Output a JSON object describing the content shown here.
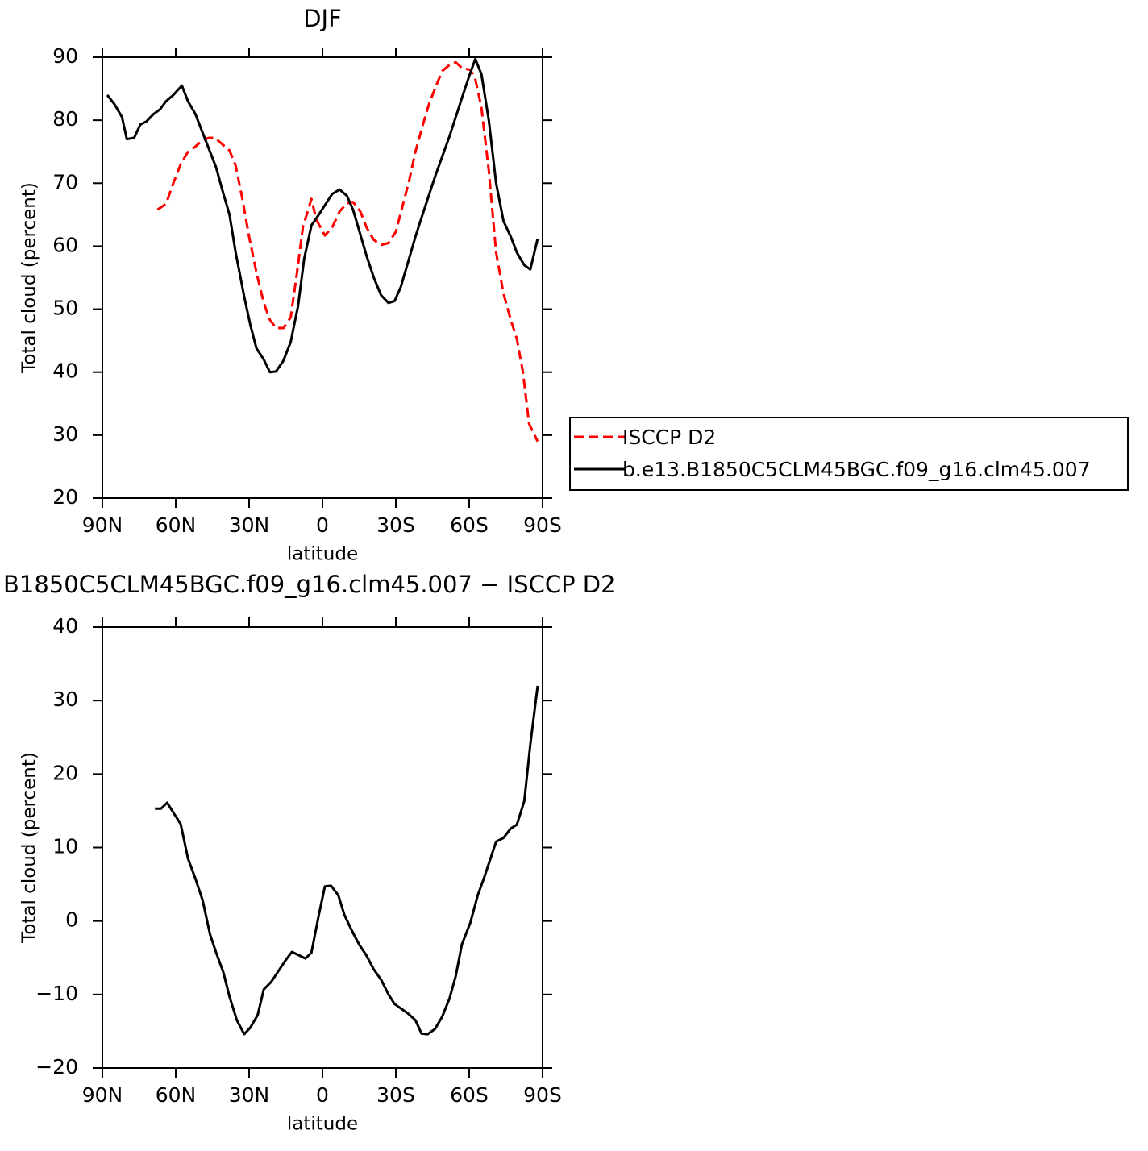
{
  "chart_data": [
    {
      "type": "line",
      "title": "DJF",
      "xlabel": "latitude",
      "ylabel": "Total cloud (percent)",
      "xlim": [
        90,
        -90
      ],
      "xticks": [
        {
          "value": 90,
          "label": "90N"
        },
        {
          "value": 60,
          "label": "60N"
        },
        {
          "value": 30,
          "label": "30N"
        },
        0,
        {
          "value": -30,
          "label": "30S"
        },
        {
          "value": -60,
          "label": "60S"
        },
        {
          "value": -90,
          "label": "90S"
        }
      ],
      "ylim": [
        20,
        90
      ],
      "yticks": [
        20,
        30,
        40,
        50,
        60,
        70,
        80,
        90
      ],
      "legend": "outside-right",
      "series": [
        {
          "name": "ISCCP D2",
          "color": "#ff0000",
          "dashed": true,
          "x": [
            67.5,
            64,
            61,
            58,
            55,
            52,
            49.5,
            46.5,
            44,
            41,
            38,
            35.5,
            33,
            30,
            27,
            24,
            21.5,
            19,
            16,
            13,
            10.5,
            8,
            4.5,
            2.5,
            -1,
            -4,
            -7,
            -10,
            -12.5,
            -15.5,
            -18,
            -21,
            -24,
            -27,
            -30,
            -32.5,
            -35.5,
            -38,
            -41,
            -43.5,
            -46.5,
            -49,
            -52,
            -54.5,
            -57,
            -60.5,
            -62.5,
            -65,
            -68,
            -71,
            -74,
            -77,
            -79.5,
            -82,
            -84.5,
            -88
          ],
          "values": [
            65.8,
            66.7,
            70,
            73,
            75,
            75.8,
            76.7,
            77.2,
            77.2,
            76.2,
            75.2,
            72.8,
            68,
            61.5,
            55.8,
            51,
            48.3,
            47,
            47,
            48.7,
            55.5,
            63,
            67.5,
            64.2,
            61.7,
            63,
            65.5,
            66.8,
            67,
            65.5,
            63,
            61,
            60.2,
            60.5,
            62.3,
            66,
            70.5,
            75,
            79.2,
            82.5,
            85.5,
            87.8,
            88.8,
            89.2,
            88.3,
            88,
            86.5,
            82,
            72,
            59,
            52.5,
            48.3,
            45.3,
            40,
            31.8,
            29
          ]
        },
        {
          "name": "b.e13.B1850C5CLM45BGC.f09_g16.clm45.007",
          "color": "#000000",
          "dashed": false,
          "x": [
            88,
            85,
            82,
            80,
            77,
            74.5,
            72,
            69,
            66.5,
            64,
            61,
            57.5,
            55,
            52,
            49,
            46,
            43.5,
            41,
            38,
            35.5,
            32,
            29.5,
            27,
            24,
            21.5,
            19,
            16,
            13,
            10,
            7.5,
            4.5,
            1.5,
            -1,
            -4,
            -7,
            -10,
            -12.5,
            -15,
            -18,
            -21,
            -24,
            -27,
            -29.5,
            -32,
            -35,
            -38,
            -40.5,
            -46,
            -52,
            -57,
            -60,
            -62.5,
            -65,
            -68,
            -71,
            -74,
            -77,
            -79.5,
            -82.5,
            -85,
            -88
          ],
          "values": [
            84,
            82.5,
            80.5,
            77,
            77.2,
            79.3,
            79.8,
            81,
            81.7,
            83,
            84,
            85.5,
            83,
            81,
            78,
            75,
            72.5,
            69,
            65,
            59,
            52,
            47.5,
            43.8,
            42,
            40,
            40.1,
            41.8,
            44.8,
            50.5,
            58,
            63.3,
            65,
            66.5,
            68.3,
            69,
            68,
            65.8,
            62.5,
            58.5,
            55,
            52.2,
            51,
            51.3,
            53.5,
            57.5,
            61.5,
            64.5,
            71,
            77.5,
            83.5,
            87,
            89.7,
            87.3,
            80,
            70,
            64,
            61.5,
            59,
            57,
            56.3,
            61.2
          ]
        }
      ]
    },
    {
      "type": "line",
      "title": "B1850C5CLM45BGC.f09_g16.clm45.007 − ISCCP D2",
      "xlabel": "latitude",
      "ylabel": "Total cloud (percent)",
      "xlim": [
        90,
        -90
      ],
      "xticks": [
        {
          "value": 90,
          "label": "90N"
        },
        {
          "value": 60,
          "label": "60N"
        },
        {
          "value": 30,
          "label": "30N"
        },
        0,
        {
          "value": -30,
          "label": "30S"
        },
        {
          "value": -60,
          "label": "60S"
        },
        {
          "value": -90,
          "label": "90S"
        }
      ],
      "ylim": [
        -20,
        40
      ],
      "yticks": [
        {
          "value": -20,
          "label": "−20"
        },
        {
          "value": -10,
          "label": "−10"
        },
        0,
        10,
        20,
        30,
        40
      ],
      "series": [
        {
          "color": "#000000",
          "dashed": false,
          "x": [
            68.5,
            66,
            63.5,
            60.5,
            58,
            55,
            52,
            49,
            46,
            43.5,
            40.5,
            38,
            35,
            32,
            29.5,
            26.5,
            24,
            21,
            18,
            15,
            12.5,
            10,
            7,
            4.5,
            1.5,
            -1,
            -3.5,
            -6.5,
            -9,
            -12,
            -15,
            -18,
            -21,
            -24,
            -27,
            -29.5,
            -32.5,
            -35,
            -38,
            -40.5,
            -43,
            -46,
            -49,
            -52,
            -54.5,
            -57,
            -60.5,
            -63.5,
            -66,
            -68.5,
            -71,
            -74,
            -77,
            -79.5,
            -82.5,
            -85,
            -88
          ],
          "values": [
            15.3,
            15.3,
            16.1,
            14.5,
            13.2,
            8.5,
            5.8,
            2.8,
            -1.8,
            -4.3,
            -7,
            -10.3,
            -13.5,
            -15.4,
            -14.5,
            -12.8,
            -9.3,
            -8.3,
            -6.8,
            -5.3,
            -4.2,
            -4.6,
            -5.1,
            -4.3,
            0.8,
            4.7,
            4.8,
            3.5,
            0.8,
            -1.3,
            -3.2,
            -4.7,
            -6.6,
            -8,
            -10,
            -11.3,
            -12,
            -12.6,
            -13.5,
            -15.3,
            -15.4,
            -14.7,
            -13,
            -10.5,
            -7.5,
            -3.2,
            -0.2,
            3.5,
            5.8,
            8.3,
            10.8,
            11.3,
            12.6,
            13.1,
            16.3,
            24,
            32
          ]
        }
      ]
    }
  ]
}
